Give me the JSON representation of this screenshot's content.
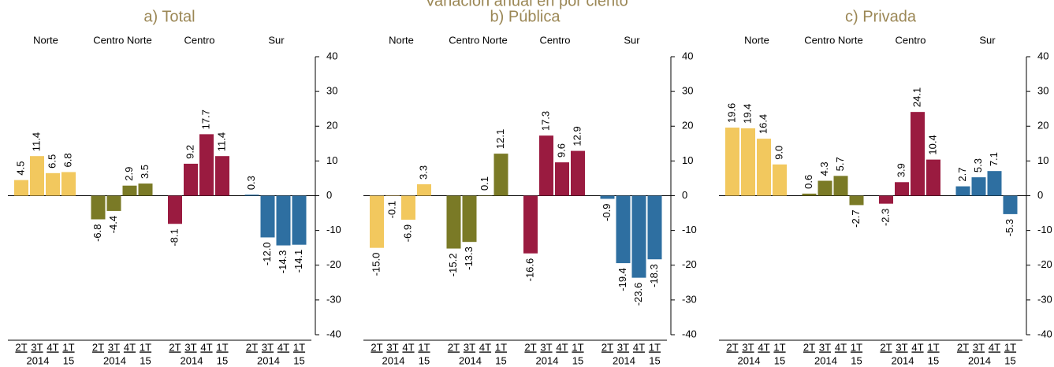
{
  "title": "Variación anual en por ciento",
  "chart_data": [
    {
      "type": "bar",
      "title": "a) Total",
      "categories": [
        "2T",
        "3T",
        "4T",
        "1T"
      ],
      "year_labels": [
        "2014",
        "15"
      ],
      "ylim": [
        -40,
        40
      ],
      "yticks": [
        -40,
        -30,
        -20,
        -10,
        0,
        10,
        20,
        30,
        40
      ],
      "series": [
        {
          "name": "Norte",
          "color": "#f2c85e",
          "values": [
            4.5,
            11.4,
            6.5,
            6.8
          ],
          "value_labels": [
            "4.5",
            "11.4",
            "6.5",
            "6.8"
          ]
        },
        {
          "name": "Centro Norte",
          "color": "#7a7a26",
          "values": [
            -6.8,
            -4.4,
            2.9,
            3.5
          ],
          "value_labels": [
            "-6.8",
            "-4.4",
            "2.9",
            "3.5"
          ]
        },
        {
          "name": "Centro",
          "color": "#9a1b40",
          "values": [
            -8.1,
            9.2,
            17.7,
            11.4
          ],
          "value_labels": [
            "-8.1",
            "9.2",
            "17.7",
            "11.4"
          ]
        },
        {
          "name": "Sur",
          "color": "#2e6fa1",
          "values": [
            0.3,
            -12.0,
            -14.3,
            -14.1
          ],
          "value_labels": [
            "0.3",
            "-12.0",
            "-14.3",
            "-14.1"
          ]
        }
      ]
    },
    {
      "type": "bar",
      "title": "b) Pública",
      "categories": [
        "2T",
        "3T",
        "4T",
        "1T"
      ],
      "year_labels": [
        "2014",
        "15"
      ],
      "ylim": [
        -40,
        40
      ],
      "yticks": [
        -40,
        -30,
        -20,
        -10,
        0,
        10,
        20,
        30,
        40
      ],
      "series": [
        {
          "name": "Norte",
          "color": "#f2c85e",
          "values": [
            -15.0,
            -0.1,
            -6.9,
            3.3
          ],
          "value_labels": [
            "-15.0",
            "-0.1",
            "-6.9",
            "3.3"
          ]
        },
        {
          "name": "Centro Norte",
          "color": "#7a7a26",
          "values": [
            -15.2,
            -13.3,
            0.1,
            12.1
          ],
          "value_labels": [
            "-15.2",
            "-13.3",
            "0.1",
            "12.1"
          ]
        },
        {
          "name": "Centro",
          "color": "#9a1b40",
          "values": [
            -16.6,
            17.3,
            9.6,
            12.9
          ],
          "value_labels": [
            "-16.6",
            "17.3",
            "9.6",
            "12.9"
          ]
        },
        {
          "name": "Sur",
          "color": "#2e6fa1",
          "values": [
            -0.9,
            -19.4,
            -23.6,
            -18.3
          ],
          "value_labels": [
            "-0.9",
            "-19.4",
            "-23.6",
            "-18.3"
          ]
        }
      ]
    },
    {
      "type": "bar",
      "title": "c) Privada",
      "categories": [
        "2T",
        "3T",
        "4T",
        "1T"
      ],
      "year_labels": [
        "2014",
        "15"
      ],
      "ylim": [
        -40,
        40
      ],
      "yticks": [
        -40,
        -30,
        -20,
        -10,
        0,
        10,
        20,
        30,
        40
      ],
      "series": [
        {
          "name": "Norte",
          "color": "#f2c85e",
          "values": [
            19.6,
            19.4,
            16.4,
            9.0
          ],
          "value_labels": [
            "19.6",
            "19.4",
            "16.4",
            "9.0"
          ]
        },
        {
          "name": "Centro Norte",
          "color": "#7a7a26",
          "values": [
            0.6,
            4.3,
            5.7,
            -2.7
          ],
          "value_labels": [
            "0.6",
            "4.3",
            "5.7",
            "-2.7"
          ]
        },
        {
          "name": "Centro",
          "color": "#9a1b40",
          "values": [
            -2.3,
            3.9,
            24.1,
            10.4
          ],
          "value_labels": [
            "-2.3",
            "3.9",
            "24.1",
            "10.4"
          ]
        },
        {
          "name": "Sur",
          "color": "#2e6fa1",
          "values": [
            2.7,
            5.3,
            7.1,
            -5.3
          ],
          "value_labels": [
            "2.7",
            "5.3",
            "7.1",
            "-5.3"
          ]
        }
      ]
    }
  ]
}
